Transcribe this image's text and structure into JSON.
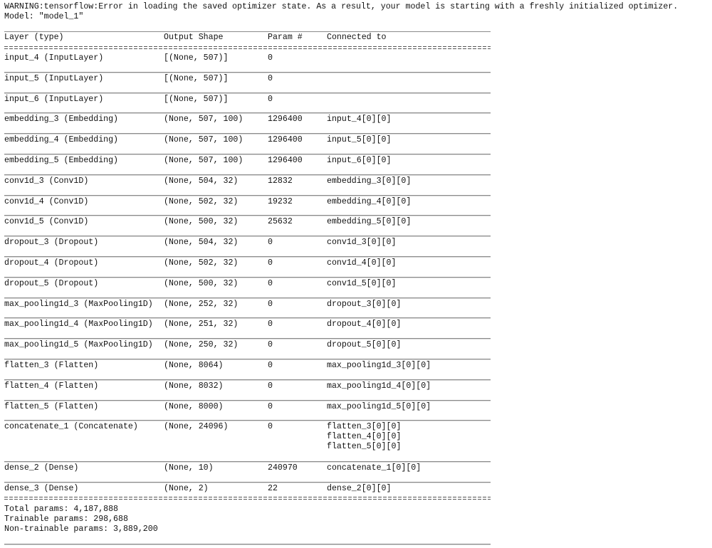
{
  "warning": "WARNING:tensorflow:Error in loading the saved optimizer state. As a result, your model is starting with a freshly initialized optimizer.",
  "model_title": "Model: \"model_1\"",
  "columns": [
    "Layer (type)",
    "Output Shape",
    "Param #",
    "Connected to"
  ],
  "rows": [
    {
      "layer": "input_4 (InputLayer)",
      "shape": "[(None, 507)]",
      "params": "0",
      "connected": [
        ""
      ]
    },
    {
      "layer": "input_5 (InputLayer)",
      "shape": "[(None, 507)]",
      "params": "0",
      "connected": [
        ""
      ]
    },
    {
      "layer": "input_6 (InputLayer)",
      "shape": "[(None, 507)]",
      "params": "0",
      "connected": [
        ""
      ]
    },
    {
      "layer": "embedding_3 (Embedding)",
      "shape": "(None, 507, 100)",
      "params": "1296400",
      "connected": [
        "input_4[0][0]"
      ]
    },
    {
      "layer": "embedding_4 (Embedding)",
      "shape": "(None, 507, 100)",
      "params": "1296400",
      "connected": [
        "input_5[0][0]"
      ]
    },
    {
      "layer": "embedding_5 (Embedding)",
      "shape": "(None, 507, 100)",
      "params": "1296400",
      "connected": [
        "input_6[0][0]"
      ]
    },
    {
      "layer": "conv1d_3 (Conv1D)",
      "shape": "(None, 504, 32)",
      "params": "12832",
      "connected": [
        "embedding_3[0][0]"
      ]
    },
    {
      "layer": "conv1d_4 (Conv1D)",
      "shape": "(None, 502, 32)",
      "params": "19232",
      "connected": [
        "embedding_4[0][0]"
      ]
    },
    {
      "layer": "conv1d_5 (Conv1D)",
      "shape": "(None, 500, 32)",
      "params": "25632",
      "connected": [
        "embedding_5[0][0]"
      ]
    },
    {
      "layer": "dropout_3 (Dropout)",
      "shape": "(None, 504, 32)",
      "params": "0",
      "connected": [
        "conv1d_3[0][0]"
      ]
    },
    {
      "layer": "dropout_4 (Dropout)",
      "shape": "(None, 502, 32)",
      "params": "0",
      "connected": [
        "conv1d_4[0][0]"
      ]
    },
    {
      "layer": "dropout_5 (Dropout)",
      "shape": "(None, 500, 32)",
      "params": "0",
      "connected": [
        "conv1d_5[0][0]"
      ]
    },
    {
      "layer": "max_pooling1d_3 (MaxPooling1D)",
      "shape": "(None, 252, 32)",
      "params": "0",
      "connected": [
        "dropout_3[0][0]"
      ]
    },
    {
      "layer": "max_pooling1d_4 (MaxPooling1D)",
      "shape": "(None, 251, 32)",
      "params": "0",
      "connected": [
        "dropout_4[0][0]"
      ]
    },
    {
      "layer": "max_pooling1d_5 (MaxPooling1D)",
      "shape": "(None, 250, 32)",
      "params": "0",
      "connected": [
        "dropout_5[0][0]"
      ]
    },
    {
      "layer": "flatten_3 (Flatten)",
      "shape": "(None, 8064)",
      "params": "0",
      "connected": [
        "max_pooling1d_3[0][0]"
      ]
    },
    {
      "layer": "flatten_4 (Flatten)",
      "shape": "(None, 8032)",
      "params": "0",
      "connected": [
        "max_pooling1d_4[0][0]"
      ]
    },
    {
      "layer": "flatten_5 (Flatten)",
      "shape": "(None, 8000)",
      "params": "0",
      "connected": [
        "max_pooling1d_5[0][0]"
      ]
    },
    {
      "layer": "concatenate_1 (Concatenate)",
      "shape": "(None, 24096)",
      "params": "0",
      "connected": [
        "flatten_3[0][0]",
        "flatten_4[0][0]",
        "flatten_5[0][0]"
      ]
    },
    {
      "layer": "dense_2 (Dense)",
      "shape": "(None, 10)",
      "params": "240970",
      "connected": [
        "concatenate_1[0][0]"
      ]
    },
    {
      "layer": "dense_3 (Dense)",
      "shape": "(None, 2)",
      "params": "22",
      "connected": [
        "dense_2[0][0]"
      ]
    }
  ],
  "totals": {
    "total": "Total params: 4,187,888",
    "trainable": "Trainable params: 298,688",
    "non_trainable": "Non-trainable params: 3,889,200"
  }
}
